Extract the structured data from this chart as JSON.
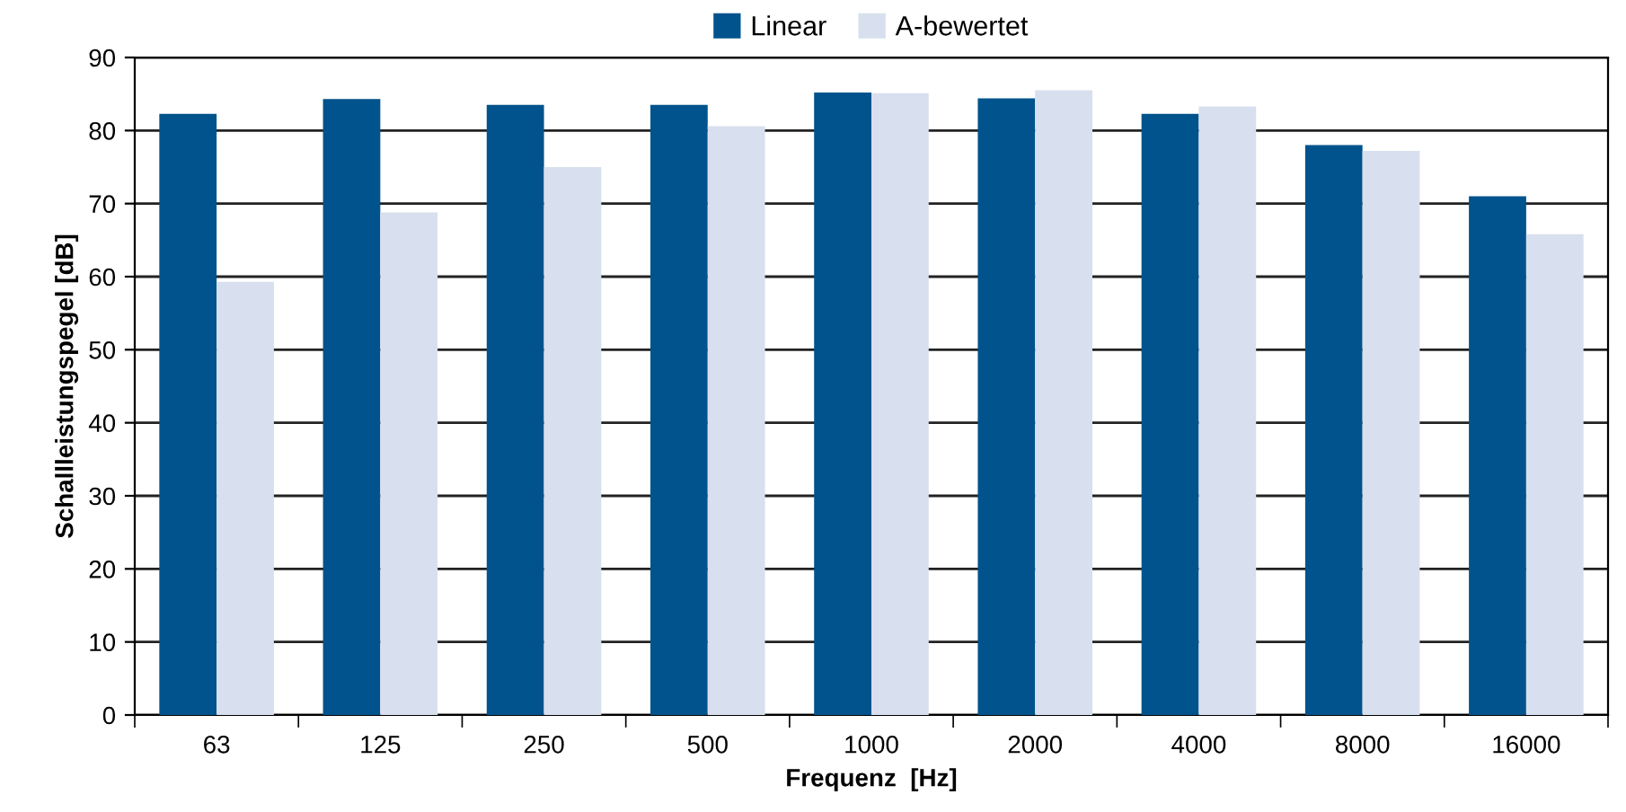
{
  "chart_data": {
    "type": "bar",
    "xlabel": "Frequenz  [Hz]",
    "ylabel": "Schallleistungspegel [dB]",
    "categories": [
      "63",
      "125",
      "250",
      "500",
      "1000",
      "2000",
      "4000",
      "8000",
      "16000"
    ],
    "series": [
      {
        "name": "Linear",
        "color": "#00538c",
        "values": [
          82.3,
          84.3,
          83.5,
          83.5,
          85.2,
          84.4,
          82.3,
          78.0,
          71.0
        ]
      },
      {
        "name": "A-bewertet",
        "color": "#d8dfee",
        "values": [
          59.3,
          68.8,
          75.0,
          80.6,
          85.1,
          85.5,
          83.3,
          77.2,
          65.8
        ]
      }
    ],
    "ylim": [
      0,
      90
    ],
    "yticks": [
      0,
      10,
      20,
      30,
      40,
      50,
      60,
      70,
      80,
      90
    ],
    "grid": "y",
    "legend": "top"
  }
}
